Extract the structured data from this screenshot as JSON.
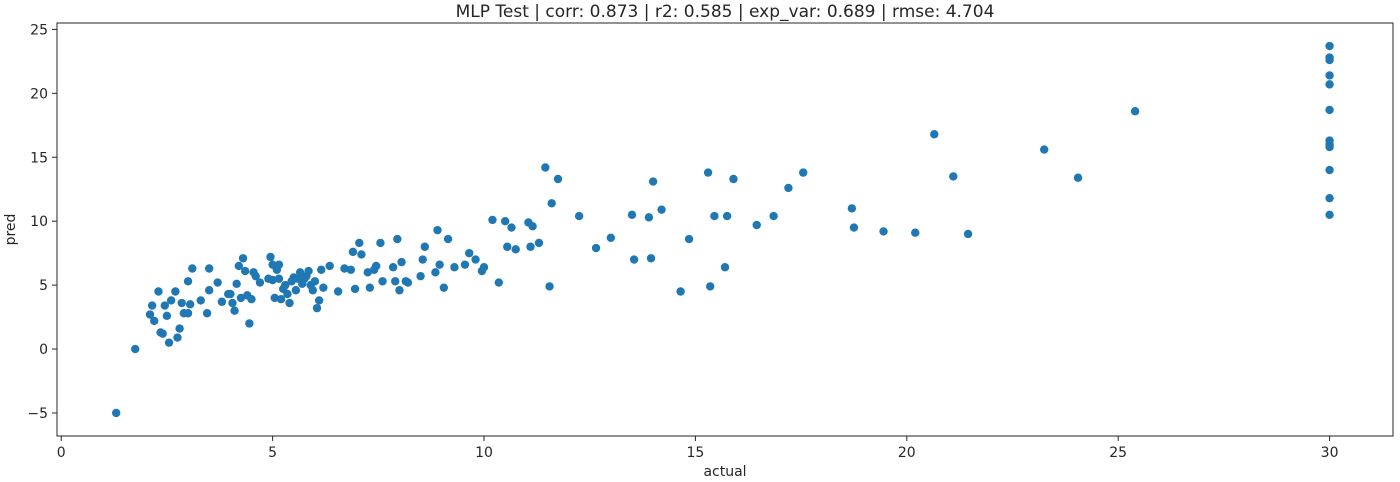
{
  "chart_data": {
    "type": "scatter",
    "title": "MLP Test | corr: 0.873 | r2: 0.585 | exp_var: 0.689 | rmse: 4.704",
    "xlabel": "actual",
    "ylabel": "pred",
    "xlim": [
      -0.1,
      31.5
    ],
    "ylim": [
      -6.8,
      25.5
    ],
    "xticks": [
      0,
      5,
      10,
      15,
      20,
      25,
      30
    ],
    "yticks": [
      -5,
      0,
      5,
      10,
      15,
      20,
      25
    ],
    "xtick_labels": [
      "0",
      "5",
      "10",
      "15",
      "20",
      "25",
      "30"
    ],
    "ytick_labels": [
      "−5",
      "0",
      "5",
      "10",
      "15",
      "20",
      "25"
    ],
    "grid": false,
    "marker_color": "#1f77b4",
    "series": [
      {
        "points": [
          [
            1.3,
            -5.0
          ],
          [
            1.75,
            0.0
          ],
          [
            2.1,
            2.7
          ],
          [
            2.15,
            3.4
          ],
          [
            2.2,
            2.2
          ],
          [
            2.3,
            4.5
          ],
          [
            2.35,
            1.3
          ],
          [
            2.4,
            1.2
          ],
          [
            2.45,
            3.4
          ],
          [
            2.5,
            2.6
          ],
          [
            2.55,
            0.5
          ],
          [
            2.6,
            3.8
          ],
          [
            2.7,
            4.5
          ],
          [
            2.75,
            0.9
          ],
          [
            2.8,
            1.6
          ],
          [
            2.85,
            3.6
          ],
          [
            2.9,
            2.8
          ],
          [
            3.0,
            5.3
          ],
          [
            3.0,
            2.8
          ],
          [
            3.05,
            3.5
          ],
          [
            3.1,
            6.3
          ],
          [
            3.3,
            3.8
          ],
          [
            3.45,
            2.8
          ],
          [
            3.5,
            4.6
          ],
          [
            3.5,
            6.3
          ],
          [
            3.7,
            5.2
          ],
          [
            3.8,
            3.7
          ],
          [
            3.95,
            4.3
          ],
          [
            4.0,
            4.3
          ],
          [
            4.05,
            3.6
          ],
          [
            4.1,
            3.0
          ],
          [
            4.15,
            5.1
          ],
          [
            4.2,
            6.5
          ],
          [
            4.25,
            4.0
          ],
          [
            4.3,
            7.1
          ],
          [
            4.35,
            6.1
          ],
          [
            4.4,
            4.2
          ],
          [
            4.45,
            2.0
          ],
          [
            4.5,
            3.9
          ],
          [
            4.55,
            6.0
          ],
          [
            4.6,
            5.7
          ],
          [
            4.7,
            5.2
          ],
          [
            4.9,
            5.5
          ],
          [
            4.95,
            7.2
          ],
          [
            5.0,
            6.6
          ],
          [
            5.0,
            5.4
          ],
          [
            5.05,
            4.0
          ],
          [
            5.1,
            6.2
          ],
          [
            5.15,
            6.6
          ],
          [
            5.15,
            5.5
          ],
          [
            5.2,
            3.9
          ],
          [
            5.25,
            4.7
          ],
          [
            5.3,
            5.0
          ],
          [
            5.35,
            4.3
          ],
          [
            5.4,
            3.6
          ],
          [
            5.45,
            5.3
          ],
          [
            5.5,
            5.6
          ],
          [
            5.55,
            4.6
          ],
          [
            5.6,
            5.5
          ],
          [
            5.65,
            6.0
          ],
          [
            5.7,
            5.1
          ],
          [
            5.75,
            5.5
          ],
          [
            5.8,
            5.7
          ],
          [
            5.85,
            6.1
          ],
          [
            5.9,
            5.0
          ],
          [
            5.95,
            4.6
          ],
          [
            6.0,
            5.3
          ],
          [
            6.05,
            3.2
          ],
          [
            6.1,
            3.8
          ],
          [
            6.15,
            6.2
          ],
          [
            6.2,
            4.8
          ],
          [
            6.35,
            6.5
          ],
          [
            6.55,
            4.5
          ],
          [
            6.7,
            6.3
          ],
          [
            6.85,
            6.2
          ],
          [
            6.9,
            7.6
          ],
          [
            6.95,
            4.7
          ],
          [
            7.05,
            8.3
          ],
          [
            7.1,
            7.4
          ],
          [
            7.25,
            6.0
          ],
          [
            7.3,
            4.8
          ],
          [
            7.4,
            6.2
          ],
          [
            7.45,
            6.5
          ],
          [
            7.55,
            8.3
          ],
          [
            7.6,
            5.3
          ],
          [
            7.85,
            6.4
          ],
          [
            7.9,
            5.3
          ],
          [
            7.95,
            8.6
          ],
          [
            8.0,
            4.6
          ],
          [
            8.05,
            6.8
          ],
          [
            8.15,
            5.3
          ],
          [
            8.2,
            5.2
          ],
          [
            8.5,
            5.7
          ],
          [
            8.55,
            7.0
          ],
          [
            8.6,
            8.0
          ],
          [
            8.85,
            6.0
          ],
          [
            8.9,
            9.3
          ],
          [
            8.95,
            6.6
          ],
          [
            9.05,
            4.8
          ],
          [
            9.15,
            8.6
          ],
          [
            9.3,
            6.4
          ],
          [
            9.55,
            6.6
          ],
          [
            9.65,
            7.5
          ],
          [
            9.8,
            7.0
          ],
          [
            9.95,
            6.1
          ],
          [
            10.0,
            6.4
          ],
          [
            10.2,
            10.1
          ],
          [
            10.35,
            5.2
          ],
          [
            10.5,
            10.0
          ],
          [
            10.55,
            8.0
          ],
          [
            10.65,
            9.5
          ],
          [
            10.75,
            7.8
          ],
          [
            11.05,
            9.9
          ],
          [
            11.1,
            8.0
          ],
          [
            11.15,
            9.6
          ],
          [
            11.3,
            8.3
          ],
          [
            11.45,
            14.2
          ],
          [
            11.55,
            4.9
          ],
          [
            11.6,
            11.4
          ],
          [
            11.75,
            13.3
          ],
          [
            12.25,
            10.4
          ],
          [
            12.65,
            7.9
          ],
          [
            13.0,
            8.7
          ],
          [
            13.5,
            10.5
          ],
          [
            13.55,
            7.0
          ],
          [
            13.9,
            10.3
          ],
          [
            13.95,
            7.1
          ],
          [
            14.0,
            13.1
          ],
          [
            14.2,
            10.9
          ],
          [
            14.65,
            4.5
          ],
          [
            14.85,
            8.6
          ],
          [
            15.3,
            13.8
          ],
          [
            15.35,
            4.9
          ],
          [
            15.45,
            10.4
          ],
          [
            15.7,
            6.4
          ],
          [
            15.75,
            10.4
          ],
          [
            15.9,
            13.3
          ],
          [
            16.45,
            9.7
          ],
          [
            16.85,
            10.4
          ],
          [
            17.2,
            12.6
          ],
          [
            17.55,
            13.8
          ],
          [
            18.7,
            11.0
          ],
          [
            18.75,
            9.5
          ],
          [
            19.45,
            9.2
          ],
          [
            20.2,
            9.1
          ],
          [
            20.65,
            16.8
          ],
          [
            21.1,
            13.5
          ],
          [
            21.45,
            9.0
          ],
          [
            23.25,
            15.6
          ],
          [
            24.05,
            13.4
          ],
          [
            25.4,
            18.6
          ],
          [
            30.0,
            23.7
          ],
          [
            30.0,
            22.8
          ],
          [
            30.0,
            22.6
          ],
          [
            30.0,
            21.4
          ],
          [
            30.0,
            20.7
          ],
          [
            30.0,
            18.7
          ],
          [
            30.0,
            16.3
          ],
          [
            30.0,
            16.0
          ],
          [
            30.0,
            15.8
          ],
          [
            30.0,
            14.0
          ],
          [
            30.0,
            11.8
          ],
          [
            30.0,
            10.5
          ]
        ]
      }
    ]
  }
}
